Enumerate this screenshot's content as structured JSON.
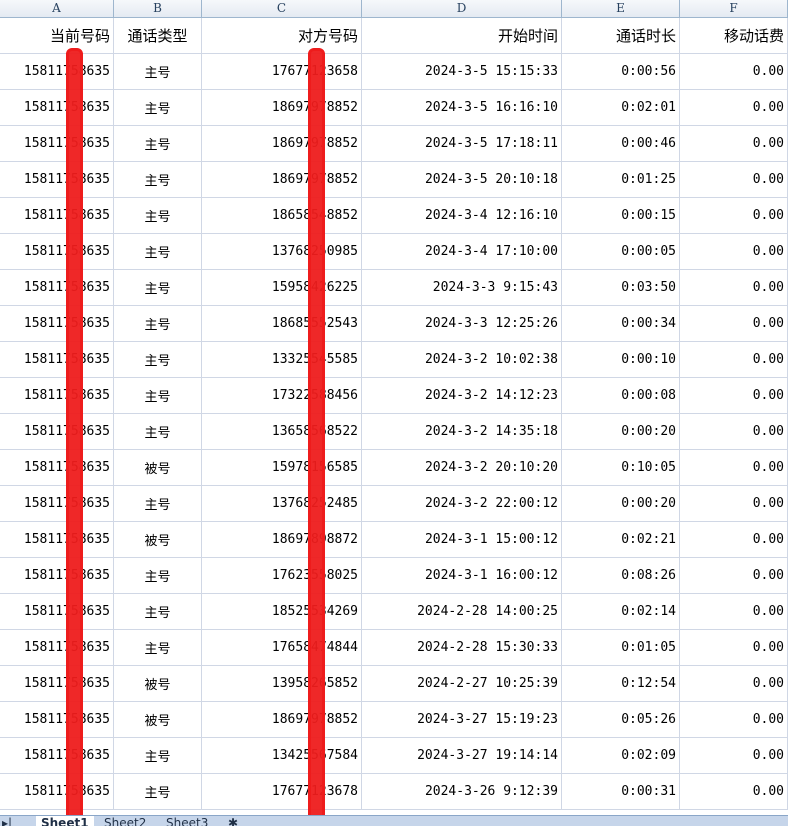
{
  "columns": [
    "A",
    "B",
    "C",
    "D",
    "E",
    "F"
  ],
  "headers": [
    "当前号码",
    "通话类型",
    "对方号码",
    "开始时间",
    "通话时长",
    "移动话费"
  ],
  "rows": [
    [
      "15811758635",
      "主号",
      "17677123658",
      "2024-3-5 15:15:33",
      "0:00:56",
      "0.00"
    ],
    [
      "15811758635",
      "主号",
      "18697978852",
      "2024-3-5 16:16:10",
      "0:02:01",
      "0.00"
    ],
    [
      "15811758635",
      "主号",
      "18697978852",
      "2024-3-5 17:18:11",
      "0:00:46",
      "0.00"
    ],
    [
      "15811758635",
      "主号",
      "18697978852",
      "2024-3-5 20:10:18",
      "0:01:25",
      "0.00"
    ],
    [
      "15811758635",
      "主号",
      "18658548852",
      "2024-3-4 12:16:10",
      "0:00:15",
      "0.00"
    ],
    [
      "15811758635",
      "主号",
      "13768250985",
      "2024-3-4 17:10:00",
      "0:00:05",
      "0.00"
    ],
    [
      "15811758635",
      "主号",
      "15958426225",
      "2024-3-3 9:15:43",
      "0:03:50",
      "0.00"
    ],
    [
      "15811758635",
      "主号",
      "18685552543",
      "2024-3-3 12:25:26",
      "0:00:34",
      "0.00"
    ],
    [
      "15811758635",
      "主号",
      "13325545585",
      "2024-3-2 10:02:38",
      "0:00:10",
      "0.00"
    ],
    [
      "15811758635",
      "主号",
      "17322588456",
      "2024-3-2 14:12:23",
      "0:00:08",
      "0.00"
    ],
    [
      "15811758635",
      "主号",
      "13658568522",
      "2024-3-2 14:35:18",
      "0:00:20",
      "0.00"
    ],
    [
      "15811758635",
      "被号",
      "15978156585",
      "2024-3-2 20:10:20",
      "0:10:05",
      "0.00"
    ],
    [
      "15811758635",
      "主号",
      "13768252485",
      "2024-3-2 22:00:12",
      "0:00:20",
      "0.00"
    ],
    [
      "15811758635",
      "被号",
      "18697898872",
      "2024-3-1 15:00:12",
      "0:02:21",
      "0.00"
    ],
    [
      "15811758635",
      "主号",
      "17623558025",
      "2024-3-1 16:00:12",
      "0:08:26",
      "0.00"
    ],
    [
      "15811758635",
      "主号",
      "18525534269",
      "2024-2-28 14:00:25",
      "0:02:14",
      "0.00"
    ],
    [
      "15811758635",
      "主号",
      "17658474844",
      "2024-2-28 15:30:33",
      "0:01:05",
      "0.00"
    ],
    [
      "15811758635",
      "被号",
      "13958265852",
      "2024-2-27 10:25:39",
      "0:12:54",
      "0.00"
    ],
    [
      "15811758635",
      "被号",
      "18697978852",
      "2024-3-27 15:19:23",
      "0:05:26",
      "0.00"
    ],
    [
      "15811758635",
      "主号",
      "13425567584",
      "2024-3-27 19:14:14",
      "0:02:09",
      "0.00"
    ],
    [
      "15811758635",
      "主号",
      "17677123678",
      "2024-3-26 9:12:39",
      "0:00:31",
      "0.00"
    ]
  ],
  "sheet_tabs": [
    "Sheet1",
    "Sheet2",
    "Sheet3"
  ],
  "redaction_color": "#ee1c1c"
}
